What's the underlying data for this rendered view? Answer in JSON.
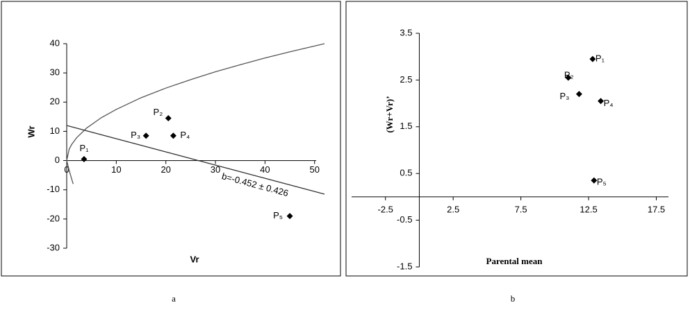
{
  "chart_data": [
    {
      "type": "scatter",
      "caption": "a",
      "x_label": "Vr",
      "y_label": "Wr",
      "xlim": [
        0,
        52
      ],
      "ylim": [
        -30,
        40
      ],
      "xticks": [
        0,
        10,
        20,
        30,
        40,
        50
      ],
      "yticks": [
        -30,
        -20,
        -10,
        0,
        10,
        20,
        30,
        40
      ],
      "series": [
        {
          "color": "#000000",
          "x": [
            3.5,
            20.5,
            16,
            21.5,
            45
          ],
          "values": [
            0.5,
            14.5,
            8.5,
            8.5,
            -19
          ],
          "point_labels": [
            "P₁",
            "P₂",
            "P₃",
            "P₄",
            "P₅"
          ]
        }
      ],
      "lines": [
        {
          "color": "#555555",
          "x": [
            0,
            0.5,
            1,
            2,
            4,
            7,
            10,
            15,
            20,
            25,
            30,
            35,
            40,
            45,
            52
          ],
          "values": [
            0,
            3.9,
            5.5,
            7.8,
            11.1,
            14.7,
            17.5,
            21.5,
            24.8,
            27.7,
            30.4,
            32.8,
            35.1,
            37.2,
            40
          ]
        },
        {
          "color": "#555555",
          "x": [
            0,
            0.6,
            1.3
          ],
          "values": [
            0,
            -4,
            -8
          ]
        },
        {
          "color": "#333333",
          "x": [
            0,
            52
          ],
          "values": [
            12,
            -11.5
          ],
          "annotation": "b=-0.452 ± 0.426"
        }
      ]
    },
    {
      "type": "scatter",
      "caption": "b",
      "x_label": "Parental mean",
      "y_label": "(Wr+Vr)’",
      "xlim": [
        -5,
        18.5
      ],
      "ylim": [
        -1.5,
        3.5
      ],
      "xticks": [
        -2.5,
        2.5,
        7.5,
        12.5,
        17.5
      ],
      "yticks": [
        -1.5,
        -0.5,
        0.5,
        1.5,
        2.5,
        3.5
      ],
      "series": [
        {
          "color": "#000000",
          "x": [
            12.8,
            11,
            11.8,
            13.4,
            12.9
          ],
          "values": [
            2.95,
            2.55,
            2.2,
            2.05,
            0.35
          ],
          "point_labels": [
            "P₁",
            "P₂",
            "P₃",
            "P₄",
            "P₅"
          ]
        }
      ],
      "lines": []
    }
  ]
}
